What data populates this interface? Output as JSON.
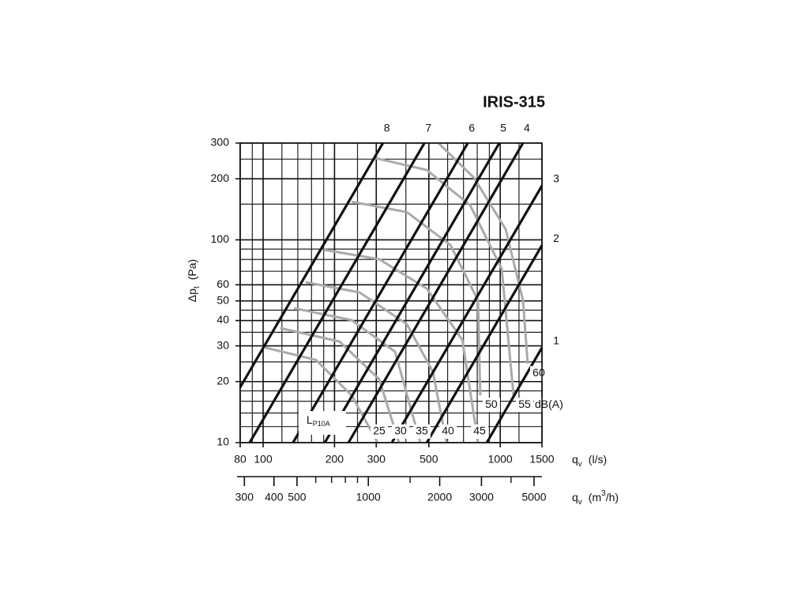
{
  "chart_data": {
    "type": "line",
    "title": "IRIS-315",
    "log_x": true,
    "log_y": true,
    "grid": true,
    "xlim": [
      80,
      1500
    ],
    "xticks": [
      80,
      100,
      200,
      300,
      500,
      1000,
      1500
    ],
    "xminor": [
      90,
      120,
      140,
      160,
      180,
      250,
      400,
      600,
      700,
      800,
      900,
      1200
    ],
    "ylim": [
      10,
      300
    ],
    "yticks": [
      10,
      20,
      30,
      40,
      50,
      60,
      100,
      200,
      300
    ],
    "yminor": [
      12,
      14,
      16,
      18,
      25,
      35,
      45,
      70,
      80,
      90,
      150,
      250
    ],
    "x2lim": [
      288,
      5400
    ],
    "x2ticks": [
      300,
      400,
      500,
      1000,
      2000,
      3000,
      5000
    ],
    "x2minor": [
      600,
      700,
      800,
      900,
      1500,
      4000
    ],
    "y_label": {
      "main": "Δp",
      "sub": "t",
      "unit": "(Pa)"
    },
    "x_label": {
      "main": "q",
      "sub": "v",
      "unit": "(l/s)"
    },
    "x2_label": {
      "main": "q",
      "sub": "v",
      "unit_a": "(m",
      "sup": "3",
      "unit_b": "/h)"
    },
    "sound_label": {
      "main": "L",
      "sub": "P10A"
    },
    "sound_unit": "dB(A)",
    "damper_color": "#111111",
    "sound_color": "#aaaaaa",
    "damper_series": [
      {
        "name": "8",
        "x": [
          80,
          320
        ],
        "y": [
          18.75,
          300
        ]
      },
      {
        "name": "7",
        "x": [
          87.7,
          479
        ],
        "y": [
          10,
          300
        ]
      },
      {
        "name": "6",
        "x": [
          133.7,
          730
        ],
        "y": [
          10,
          300
        ]
      },
      {
        "name": "5",
        "x": [
          182,
          991
        ],
        "y": [
          10,
          300
        ]
      },
      {
        "name": "4",
        "x": [
          229,
          1247
        ],
        "y": [
          10,
          300
        ]
      },
      {
        "name": "3",
        "x": [
          349,
          1500
        ],
        "y": [
          10,
          185
        ]
      },
      {
        "name": "2",
        "x": [
          490,
          1500
        ],
        "y": [
          10,
          94
        ]
      },
      {
        "name": "1",
        "x": [
          877,
          1500
        ],
        "y": [
          10,
          29.4
        ]
      }
    ],
    "sound_series": [
      {
        "name": "25",
        "x": [
          102,
          167,
          236,
          304
        ],
        "y": [
          29.4,
          25.6,
          17.1,
          10
        ]
      },
      {
        "name": "30",
        "x": [
          118,
          210,
          309,
          374
        ],
        "y": [
          36.7,
          31.5,
          20.5,
          10
        ]
      },
      {
        "name": "35",
        "x": [
          135,
          236,
          360,
          460
        ],
        "y": [
          46,
          40.2,
          28.1,
          10
        ]
      },
      {
        "name": "40",
        "x": [
          151,
          255,
          404,
          520,
          593
        ],
        "y": [
          61.8,
          55,
          38.4,
          22.4,
          10
        ]
      },
      {
        "name": "45",
        "x": [
          180,
          309,
          490,
          692,
          806
        ],
        "y": [
          89.3,
          80.2,
          57.5,
          32.1,
          10
        ]
      },
      {
        "name": "50",
        "x": [
          236,
          404,
          617,
          806,
          824
        ],
        "y": [
          154,
          137,
          94.2,
          50.2,
          17.1
        ]
      },
      {
        "name": "55",
        "x": [
          297,
          490,
          747,
          1015,
          1138
        ],
        "y": [
          253,
          221,
          148,
          71.9,
          17.1
        ]
      },
      {
        "name": "60",
        "x": [
          549,
          776,
          1054,
          1248,
          1306
        ],
        "y": [
          300,
          202,
          113,
          50.2,
          24.5
        ]
      }
    ]
  }
}
